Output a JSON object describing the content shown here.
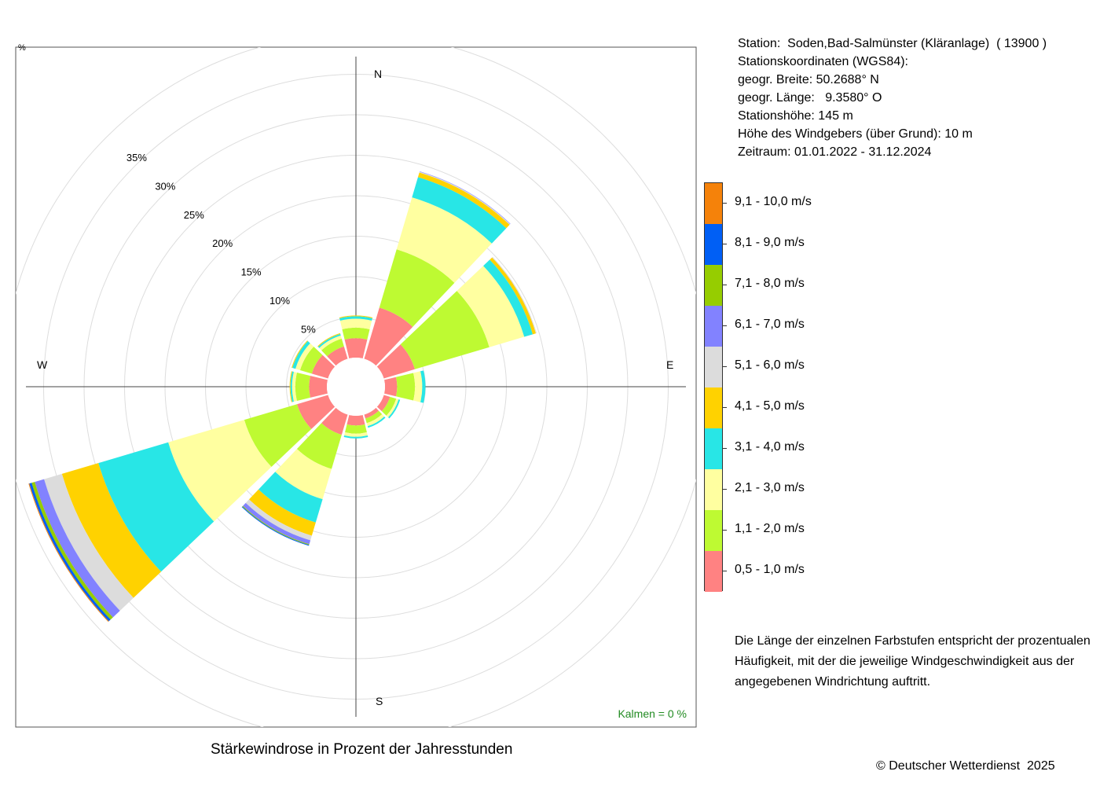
{
  "station": {
    "line1": "Station:  Soden,Bad-Salmünster (Kläranlage)  ( 13900 )",
    "line2": "Stationskoordinaten (WGS84):",
    "line3": "geogr. Breite: 50.2688° N",
    "line4": "geogr. Länge:   9.3580° O",
    "line5": "Stationshöhe: 145 m",
    "line6": "Höhe des Windgebers (über Grund): 10 m",
    "line7": "Zeitraum: 01.01.2022 - 31.12.2024"
  },
  "legend": {
    "items": [
      {
        "label": "9,1 - 10,0 m/s",
        "color": "#f5820a"
      },
      {
        "label": "8,1 - 9,0 m/s",
        "color": "#005ff5"
      },
      {
        "label": "7,1 - 8,0 m/s",
        "color": "#96cd00"
      },
      {
        "label": "6,1 - 7,0 m/s",
        "color": "#8282ff"
      },
      {
        "label": "5,1 - 6,0 m/s",
        "color": "#dcdcdc"
      },
      {
        "label": "4,1 - 5,0 m/s",
        "color": "#ffd200"
      },
      {
        "label": "3,1 - 4,0 m/s",
        "color": "#28e6e6"
      },
      {
        "label": "2,1 - 3,0 m/s",
        "color": "#ffffa0"
      },
      {
        "label": "1,1 - 2,0 m/s",
        "color": "#befa32"
      },
      {
        "label": "0,5 - 1,0 m/s",
        "color": "#ff8282"
      }
    ]
  },
  "note": "Die Länge der einzelnen Farbstufen entspricht der prozentualen Häufigkeit, mit der die jeweilige Windgeschwindigkeit aus der angegebenen Windrichtung auftritt.",
  "caption": "Stärkewindrose in Prozent der Jahresstunden",
  "copyright": "© Deutscher Wetterdienst  2025",
  "chart_data": {
    "type": "wind-rose",
    "title": "Stärkewindrose in Prozent der Jahresstunden",
    "unit_label": "%",
    "calm_label": "Kalmen  =  0 %",
    "directions_label": {
      "N": "N",
      "E": "E",
      "S": "S",
      "W": "W"
    },
    "ring_labels": [
      "5%",
      "10%",
      "15%",
      "20%",
      "25%",
      "30%",
      "35%"
    ],
    "ring_values": [
      5,
      10,
      15,
      20,
      25,
      30,
      35
    ],
    "rmax": 40,
    "sector_degrees": [
      0,
      30,
      60,
      90,
      120,
      150,
      180,
      210,
      240,
      270,
      300,
      330
    ],
    "speed_classes": [
      "0,5 - 1,0 m/s",
      "1,1 - 2,0 m/s",
      "2,1 - 3,0 m/s",
      "3,1 - 4,0 m/s",
      "4,1 - 5,0 m/s",
      "5,1 - 6,0 m/s",
      "6,1 - 7,0 m/s",
      "7,1 - 8,0 m/s",
      "8,1 - 9,0 m/s",
      "9,1 - 10,0 m/s"
    ],
    "series": [
      {
        "direction": 0,
        "values": [
          2.4,
          1.3,
          1.1,
          0.3,
          0.1,
          0,
          0,
          0,
          0,
          0
        ]
      },
      {
        "direction": 30,
        "values": [
          6.6,
          7.5,
          6.7,
          2.6,
          0.6,
          0.1,
          0.05,
          0,
          0,
          0
        ]
      },
      {
        "direction": 60,
        "values": [
          4.0,
          9.6,
          4.5,
          1.1,
          0.4,
          0.1,
          0,
          0,
          0,
          0
        ]
      },
      {
        "direction": 90,
        "values": [
          1.5,
          2.2,
          0.9,
          0.4,
          0,
          0,
          0,
          0,
          0,
          0
        ]
      },
      {
        "direction": 120,
        "values": [
          0.8,
          0.8,
          0.3,
          0.2,
          0,
          0,
          0,
          0,
          0,
          0
        ]
      },
      {
        "direction": 150,
        "values": [
          0.5,
          0.6,
          0.4,
          0.2,
          0,
          0,
          0,
          0,
          0,
          0
        ]
      },
      {
        "direction": 180,
        "values": [
          1.2,
          1.0,
          0.4,
          0.2,
          0,
          0,
          0,
          0,
          0,
          0
        ]
      },
      {
        "direction": 210,
        "values": [
          2.6,
          4.4,
          3.9,
          3.0,
          1.7,
          0.6,
          0.5,
          0.1,
          0.1,
          0
        ]
      },
      {
        "direction": 240,
        "values": [
          4.0,
          6.8,
          9.8,
          9.0,
          4.7,
          2.3,
          1.2,
          0.4,
          0.3,
          0.1
        ]
      },
      {
        "direction": 270,
        "values": [
          2.2,
          1.7,
          0.4,
          0.2,
          0.1,
          0,
          0,
          0,
          0,
          0
        ]
      },
      {
        "direction": 300,
        "values": [
          2.1,
          1.5,
          0.6,
          0.4,
          0.1,
          0,
          0,
          0,
          0,
          0
        ]
      },
      {
        "direction": 330,
        "values": [
          1.6,
          1.0,
          0.4,
          0.2,
          0.1,
          0,
          0,
          0,
          0,
          0
        ]
      }
    ]
  }
}
